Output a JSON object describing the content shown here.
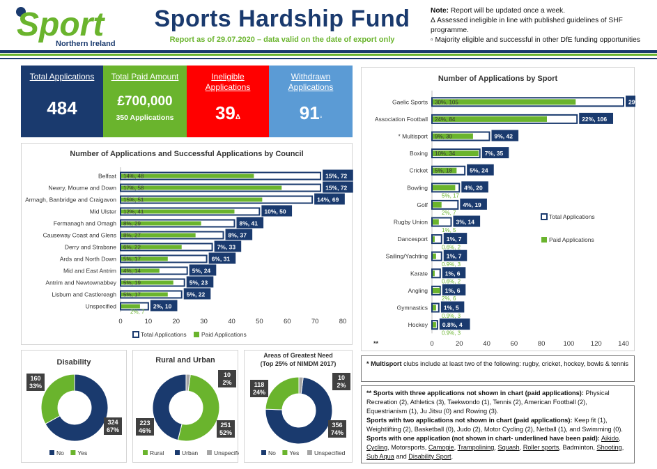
{
  "header": {
    "logo_text": "Sport",
    "logo_sub": "Northern Ireland",
    "title": "Sports Hardship Fund",
    "subtitle": "Report as of 29.07.2020 – data valid on the date of export only",
    "note_label": "Note:",
    "note_line1": " Report will be updated once a week.",
    "note_line2": "Δ Assessed ineligible in line with published guidelines of SHF programme.",
    "note_line3": "▫ Majority eligible and successful in other DfE funding opportunities"
  },
  "colors": {
    "navy": "#1a3a6e",
    "green": "#6ab42d",
    "red": "#ff0000",
    "blue": "#5b9bd5",
    "grey": "#a6a6a6"
  },
  "kpis": {
    "total_label": "Total Applications",
    "total_value": "484",
    "paid_label": "Total Paid Amount",
    "paid_value": "£700,000",
    "paid_sub": "350 Applications",
    "ineligible_label": "Ineligible Applications",
    "ineligible_value": "39",
    "ineligible_symbol": "Δ",
    "withdrawn_label": "Withdrawn Applications",
    "withdrawn_value": "91",
    "withdrawn_symbol": "▫"
  },
  "chart_data": [
    {
      "type": "bar",
      "orientation": "horizontal",
      "title": "Number of Applications and Successful Applications by Council",
      "categories": [
        "Belfast",
        "Newry, Mourne and Down",
        "Armagh, Banbridge and Craigavon",
        "Mid Ulster",
        "Fermanagh and Omagh",
        "Causeway Coast and Glens",
        "Derry and Strabane",
        "Ards and North Down",
        "Mid and East Antrim",
        "Antrim and Newtownabbey",
        "Lisburn and Castlereagh",
        "Unspecified"
      ],
      "series": [
        {
          "name": "Total Applications",
          "values": [
            72,
            72,
            69,
            50,
            41,
            37,
            33,
            31,
            24,
            23,
            22,
            10
          ],
          "labels": [
            "15%, 72",
            "15%, 72",
            "14%, 69",
            "10%, 50",
            "8%, 41",
            "8%, 37",
            "7%, 33",
            "6%, 31",
            "5%, 24",
            "5%, 23",
            "5%, 22",
            "2%, 10"
          ]
        },
        {
          "name": "Paid Applications",
          "values": [
            48,
            58,
            51,
            41,
            29,
            27,
            22,
            17,
            14,
            19,
            17,
            7
          ],
          "labels": [
            "14%, 48",
            "17%, 58",
            "15%, 51",
            "12%, 41",
            "8%, 29",
            "8%, 27",
            "6%, 22",
            "5%, 17",
            "4%, 14",
            "5%, 19",
            "5%, 17",
            "2%, 7"
          ]
        }
      ],
      "xlim": [
        0,
        80
      ],
      "xticks": [
        "0",
        "10",
        "20",
        "30",
        "40",
        "50",
        "60",
        "70",
        "80"
      ],
      "legend": "bottom"
    },
    {
      "type": "bar",
      "orientation": "horizontal",
      "title": "Number of Applications by Sport",
      "categories": [
        "Gaelic Sports",
        "Association Football",
        "* Multisport",
        "Boxing",
        "Cricket",
        "Bowling",
        "Golf",
        "Rugby Union",
        "Dancesport",
        "Sailing/Yachting",
        "Karate",
        "Angling",
        "Gymnastics",
        "Hockey"
      ],
      "series": [
        {
          "name": "Total Applications",
          "values": [
            140,
            106,
            42,
            35,
            24,
            20,
            19,
            14,
            7,
            7,
            6,
            6,
            5,
            4
          ],
          "labels": [
            "29%, 140",
            "22%, 106",
            "9%, 42",
            "7%, 35",
            "5%, 24",
            "4%, 20",
            "4%, 19",
            "3%, 14",
            "1%, 7",
            "1%, 7",
            "1%, 6",
            "1%, 6",
            "1%, 5",
            "0.8%, 4"
          ]
        },
        {
          "name": "Paid Applications",
          "values": [
            105,
            84,
            30,
            34,
            18,
            17,
            7,
            5,
            2,
            3,
            2,
            6,
            3,
            3
          ],
          "labels": [
            "30%, 105",
            "24%, 84",
            "9%, 30",
            "10%, 34",
            "5%, 18",
            "5%, 17",
            "2%, 7",
            "1%, 5",
            "0.6%, 2",
            "0.9%, 3",
            "0.6%, 2",
            "2%, 6",
            "0.9%, 3",
            "0.9%, 3"
          ]
        }
      ],
      "xlim": [
        0,
        140
      ],
      "xticks": [
        "0",
        "20",
        "40",
        "60",
        "80",
        "100",
        "120",
        "140"
      ],
      "xlabel_marker": "**",
      "legend": "right"
    },
    {
      "type": "pie",
      "title": "Disability",
      "categories": [
        "No",
        "Yes"
      ],
      "values": [
        324,
        160
      ],
      "labels": [
        "324\n67%",
        "160\n33%"
      ],
      "legend": "bottom"
    },
    {
      "type": "pie",
      "title": "Rural and Urban",
      "categories": [
        "Rural",
        "Urban",
        "Unspecified"
      ],
      "values": [
        251,
        223,
        10
      ],
      "labels": [
        "251\n52%",
        "223\n46%",
        "10\n2%"
      ],
      "legend": "bottom"
    },
    {
      "type": "pie",
      "title": "Areas of Greatest Need (Top 25% of NIMDM 2017)",
      "categories": [
        "No",
        "Yes",
        "Unspecified"
      ],
      "values": [
        356,
        118,
        10
      ],
      "labels": [
        "356\n74%",
        "118\n24%",
        "10\n2%"
      ],
      "legend": "bottom"
    }
  ],
  "pies": {
    "disability": {
      "title": "Disability"
    },
    "rural": {
      "title": "Rural and Urban"
    },
    "need": {
      "title": "Areas of Greatest Need",
      "title2": "(Top 25% of NIMDM 2017)"
    }
  },
  "footnotes": {
    "multisport_mark": "* Multisport",
    "multisport_text": " clubs include at least two of the following: rugby, cricket, hockey, bowls & tennis",
    "three_head": "** Sports with three applications not shown in chart (paid applications):",
    "three_text": " Physical Recreation (2), Athletics (3), Taekwondo (1), Tennis (2), American Football (2), Equestrianism (1), Ju Jitsu (0) and Rowing (3).",
    "two_head": "Sports with two applications not shown in chart (paid applications):",
    "two_text": " Keep fit (1), Weightlifting (2), Basketball (0), Judo (2), Motor Cycling (2), Netball (1), and Swimming (0).",
    "one_head": "Sports with one application (not shown in chart- underlined have been paid):",
    "one_items": [
      {
        "text": "Aikido",
        "u": true
      },
      {
        "text": "Cycling",
        "u": true
      },
      {
        "text": "Motorsports",
        "u": false
      },
      {
        "text": "Camogie",
        "u": true
      },
      {
        "text": "Trampolining",
        "u": true
      },
      {
        "text": "Squash",
        "u": true
      },
      {
        "text": "Roller sports",
        "u": true
      },
      {
        "text": "Badminton",
        "u": false
      },
      {
        "text": "Shooting",
        "u": true
      },
      {
        "text": "Sub Aqua",
        "u": true
      },
      {
        "text": "Disability Sport",
        "u": true
      }
    ]
  }
}
